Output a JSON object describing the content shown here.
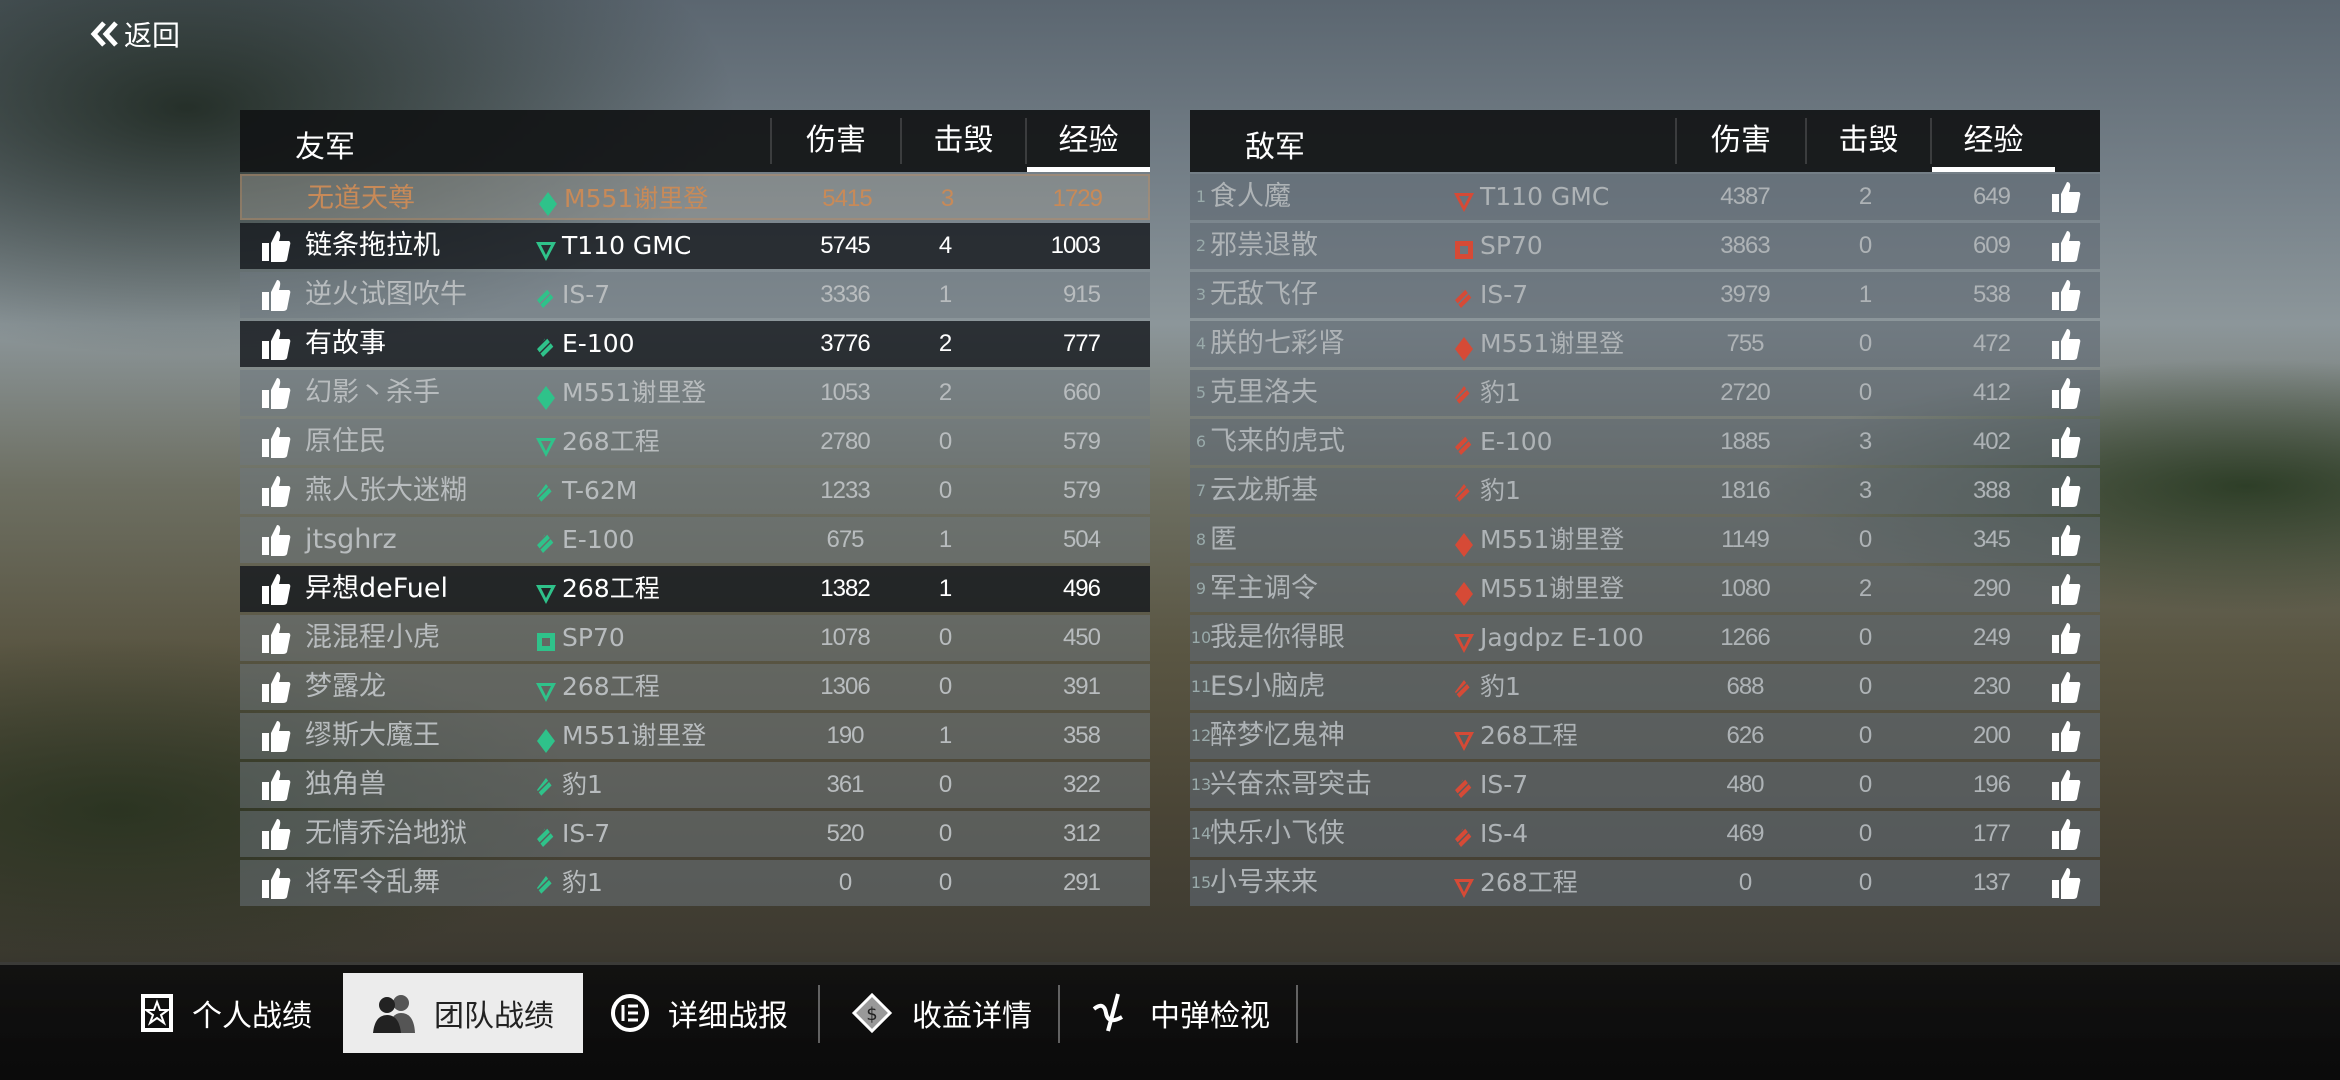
{
  "header": {
    "back_label": "返回"
  },
  "colors": {
    "ally": "#2fc28a",
    "enemy": "#d64a36",
    "player_text": "#c88a58"
  },
  "ally": {
    "title": "友军",
    "columns": {
      "damage": "伤害",
      "kills": "击毁",
      "exp": "经验"
    },
    "sorted_by": "exp",
    "rows": [
      {
        "name": "无道天尊",
        "tank": "M551谢里登",
        "class": "light",
        "damage": "5415",
        "kills": "3",
        "exp": "1729",
        "style": "player",
        "thumb": false
      },
      {
        "name": "链条拖拉机",
        "tank": "T110 GMC",
        "class": "td",
        "damage": "5745",
        "kills": "4",
        "exp": "1003",
        "style": "bright",
        "thumb": true
      },
      {
        "name": "逆火试图吹牛",
        "tank": "IS-7",
        "class": "heavy",
        "damage": "3336",
        "kills": "1",
        "exp": "915",
        "style": "normal",
        "thumb": true
      },
      {
        "name": "有故事",
        "tank": "E-100",
        "class": "heavy",
        "damage": "3776",
        "kills": "2",
        "exp": "777",
        "style": "bright",
        "thumb": true
      },
      {
        "name": "幻影丶杀手",
        "tank": "M551谢里登",
        "class": "light",
        "damage": "1053",
        "kills": "2",
        "exp": "660",
        "style": "normal",
        "thumb": true
      },
      {
        "name": "原住民",
        "tank": "268工程",
        "class": "td",
        "damage": "2780",
        "kills": "0",
        "exp": "579",
        "style": "normal",
        "thumb": true
      },
      {
        "name": "燕人张大迷糊",
        "tank": "T-62M",
        "class": "medium",
        "damage": "1233",
        "kills": "0",
        "exp": "579",
        "style": "normal",
        "thumb": true
      },
      {
        "name": "jtsghrz",
        "tank": "E-100",
        "class": "heavy",
        "damage": "675",
        "kills": "1",
        "exp": "504",
        "style": "normal",
        "thumb": true
      },
      {
        "name": "异想deFuel",
        "tank": "268工程",
        "class": "td",
        "damage": "1382",
        "kills": "1",
        "exp": "496",
        "style": "bright",
        "thumb": true
      },
      {
        "name": "混混程小虎",
        "tank": "SP70",
        "class": "spg",
        "damage": "1078",
        "kills": "0",
        "exp": "450",
        "style": "normal",
        "thumb": true
      },
      {
        "name": "梦露龙",
        "tank": "268工程",
        "class": "td",
        "damage": "1306",
        "kills": "0",
        "exp": "391",
        "style": "normal",
        "thumb": true
      },
      {
        "name": "缪斯大魔王",
        "tank": "M551谢里登",
        "class": "light",
        "damage": "190",
        "kills": "1",
        "exp": "358",
        "style": "normal",
        "thumb": true
      },
      {
        "name": "独角兽",
        "tank": "豹1",
        "class": "medium",
        "damage": "361",
        "kills": "0",
        "exp": "322",
        "style": "normal",
        "thumb": true
      },
      {
        "name": "无情乔治地狱",
        "tank": "IS-7",
        "class": "heavy",
        "damage": "520",
        "kills": "0",
        "exp": "312",
        "style": "normal",
        "thumb": true
      },
      {
        "name": "将军令乱舞",
        "tank": "豹1",
        "class": "medium",
        "damage": "0",
        "kills": "0",
        "exp": "291",
        "style": "normal",
        "thumb": true
      }
    ]
  },
  "enemy": {
    "title": "敌军",
    "columns": {
      "damage": "伤害",
      "kills": "击毁",
      "exp": "经验"
    },
    "sorted_by": "exp",
    "rows": [
      {
        "index": "1",
        "name": "食人魔",
        "tank": "T110 GMC",
        "class": "td",
        "damage": "4387",
        "kills": "2",
        "exp": "649"
      },
      {
        "index": "2",
        "name": "邪祟退散",
        "tank": "SP70",
        "class": "spg",
        "damage": "3863",
        "kills": "0",
        "exp": "609"
      },
      {
        "index": "3",
        "name": "无敌飞仔",
        "tank": "IS-7",
        "class": "heavy",
        "damage": "3979",
        "kills": "1",
        "exp": "538"
      },
      {
        "index": "4",
        "name": "朕的七彩肾",
        "tank": "M551谢里登",
        "class": "light",
        "damage": "755",
        "kills": "0",
        "exp": "472"
      },
      {
        "index": "5",
        "name": "克里洛夫",
        "tank": "豹1",
        "class": "medium",
        "damage": "2720",
        "kills": "0",
        "exp": "412"
      },
      {
        "index": "6",
        "name": "飞来的虎式",
        "tank": "E-100",
        "class": "heavy",
        "damage": "1885",
        "kills": "3",
        "exp": "402"
      },
      {
        "index": "7",
        "name": "云龙斯基",
        "tank": "豹1",
        "class": "medium",
        "damage": "1816",
        "kills": "3",
        "exp": "388"
      },
      {
        "index": "8",
        "name": "匿",
        "tank": "M551谢里登",
        "class": "light",
        "damage": "1149",
        "kills": "0",
        "exp": "345"
      },
      {
        "index": "9",
        "name": "军主调令",
        "tank": "M551谢里登",
        "class": "light",
        "damage": "1080",
        "kills": "2",
        "exp": "290"
      },
      {
        "index": "10",
        "name": "我是你得眼",
        "tank": "Jagdpz E-100",
        "class": "td",
        "damage": "1266",
        "kills": "0",
        "exp": "249"
      },
      {
        "index": "11",
        "name": "ES小脑虎",
        "tank": "豹1",
        "class": "medium",
        "damage": "688",
        "kills": "0",
        "exp": "230"
      },
      {
        "index": "12",
        "name": "醉梦忆鬼神",
        "tank": "268工程",
        "class": "td",
        "damage": "626",
        "kills": "0",
        "exp": "200"
      },
      {
        "index": "13",
        "name": "兴奋杰哥突击",
        "tank": "IS-7",
        "class": "heavy",
        "damage": "480",
        "kills": "0",
        "exp": "196"
      },
      {
        "index": "14",
        "name": "快乐小飞侠",
        "tank": "IS-4",
        "class": "heavy",
        "damage": "469",
        "kills": "0",
        "exp": "177"
      },
      {
        "index": "15",
        "name": "小号来来",
        "tank": "268工程",
        "class": "td",
        "damage": "0",
        "kills": "0",
        "exp": "137"
      }
    ]
  },
  "tabs": [
    {
      "label": "个人战绩",
      "icon": "medal-icon",
      "active": false
    },
    {
      "label": "团队战绩",
      "icon": "team-icon",
      "active": true
    },
    {
      "label": "详细战报",
      "icon": "list-icon",
      "active": false
    },
    {
      "label": "收益详情",
      "icon": "money-icon",
      "active": false
    },
    {
      "label": "中弹检视",
      "icon": "hit-inspect-icon",
      "active": false
    }
  ]
}
